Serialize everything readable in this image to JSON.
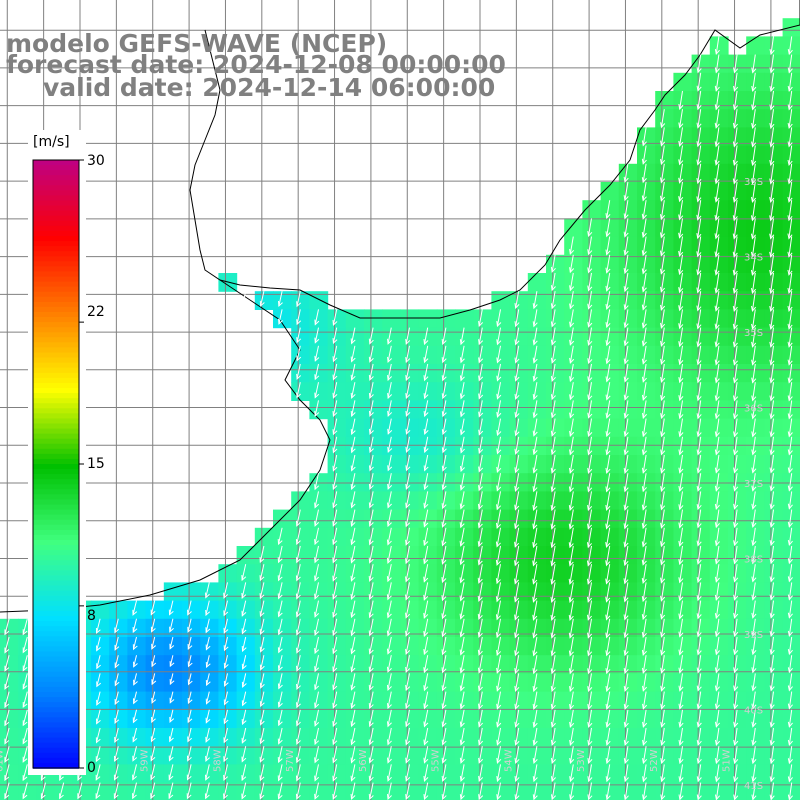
{
  "title": {
    "line1": "modelo GEFS-WAVE (NCEP)",
    "line2": "forecast date: 2024-12-08 00:00:00",
    "line3": "valid date: 2024-12-14 06:00:00"
  },
  "colorbar": {
    "unit": "[m/s]",
    "ticks": [
      "30",
      "22",
      "15",
      "8",
      "0"
    ],
    "tick_values": [
      30,
      22,
      15,
      8,
      0
    ],
    "range": [
      0,
      30
    ],
    "colors": [
      "#0000ff",
      "#0080ff",
      "#00e0ff",
      "#40ff80",
      "#00c000",
      "#ffff00",
      "#ff8000",
      "#ff0000",
      "#c00080"
    ]
  },
  "map": {
    "variable": "wind speed and direction",
    "lon_labels": [
      "61W",
      "60W",
      "59W",
      "58W",
      "57W",
      "56W",
      "55W",
      "54W",
      "53W",
      "52W",
      "51W"
    ],
    "lat_labels": [
      "33S",
      "34S",
      "35S",
      "36S",
      "37S",
      "38S",
      "39S",
      "40S",
      "41S"
    ],
    "lon_range": [
      -61.1,
      -50.1
    ],
    "lat_range": [
      -41.2,
      -30.6
    ],
    "land_color": "#ffffff",
    "grid_color": "#808080",
    "coast_color": "#000000"
  }
}
